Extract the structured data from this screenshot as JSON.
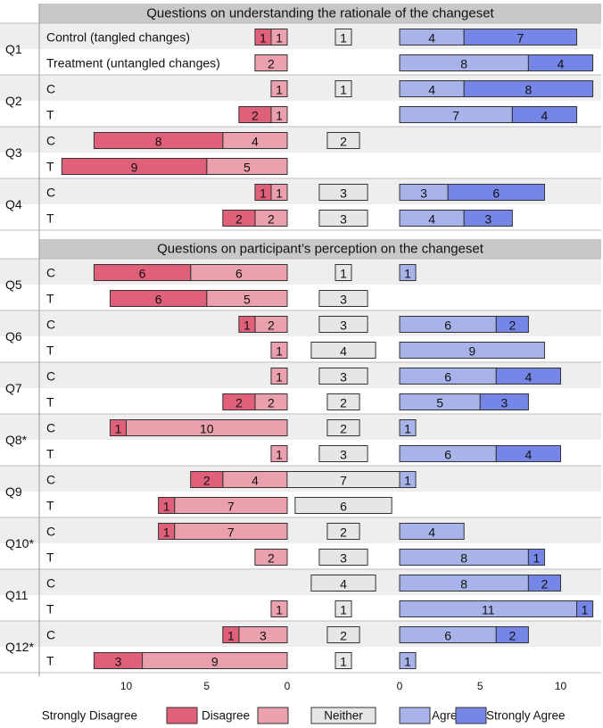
{
  "chart_data": {
    "type": "bar",
    "sections": [
      {
        "title": "Questions on understanding the rationale of the changeset",
        "questions": [
          {
            "label": "Q1",
            "rows": [
              {
                "group": "Control (tangled changes)",
                "strongly_disagree": 1,
                "disagree": 1,
                "neither": 1,
                "agree": 4,
                "strongly_agree": 7
              },
              {
                "group": "Treatment (untangled changes)",
                "strongly_disagree": 0,
                "disagree": 2,
                "neither": 0,
                "agree": 8,
                "strongly_agree": 4
              }
            ]
          },
          {
            "label": "Q2",
            "rows": [
              {
                "group": "C",
                "strongly_disagree": 0,
                "disagree": 1,
                "neither": 1,
                "agree": 4,
                "strongly_agree": 8
              },
              {
                "group": "T",
                "strongly_disagree": 2,
                "disagree": 1,
                "neither": 0,
                "agree": 7,
                "strongly_agree": 4
              }
            ]
          },
          {
            "label": "Q3",
            "rows": [
              {
                "group": "C",
                "strongly_disagree": 8,
                "disagree": 4,
                "neither": 2,
                "agree": 0,
                "strongly_agree": 0
              },
              {
                "group": "T",
                "strongly_disagree": 9,
                "disagree": 5,
                "neither": 0,
                "agree": 0,
                "strongly_agree": 0
              }
            ]
          },
          {
            "label": "Q4",
            "rows": [
              {
                "group": "C",
                "strongly_disagree": 1,
                "disagree": 1,
                "neither": 3,
                "agree": 3,
                "strongly_agree": 6
              },
              {
                "group": "T",
                "strongly_disagree": 2,
                "disagree": 2,
                "neither": 3,
                "agree": 4,
                "strongly_agree": 3
              }
            ]
          }
        ]
      },
      {
        "title": "Questions on participant’s perception on the changeset",
        "questions": [
          {
            "label": "Q5",
            "rows": [
              {
                "group": "C",
                "strongly_disagree": 6,
                "disagree": 6,
                "neither": 1,
                "agree": 1,
                "strongly_agree": 0
              },
              {
                "group": "T",
                "strongly_disagree": 6,
                "disagree": 5,
                "neither": 3,
                "agree": 0,
                "strongly_agree": 0
              }
            ]
          },
          {
            "label": "Q6",
            "rows": [
              {
                "group": "C",
                "strongly_disagree": 1,
                "disagree": 2,
                "neither": 3,
                "agree": 6,
                "strongly_agree": 2
              },
              {
                "group": "T",
                "strongly_disagree": 0,
                "disagree": 1,
                "neither": 4,
                "agree": 9,
                "strongly_agree": 0
              }
            ]
          },
          {
            "label": "Q7",
            "rows": [
              {
                "group": "C",
                "strongly_disagree": 0,
                "disagree": 1,
                "neither": 3,
                "agree": 6,
                "strongly_agree": 4
              },
              {
                "group": "T",
                "strongly_disagree": 2,
                "disagree": 2,
                "neither": 2,
                "agree": 5,
                "strongly_agree": 3
              }
            ]
          },
          {
            "label": "Q8*",
            "rows": [
              {
                "group": "C",
                "strongly_disagree": 1,
                "disagree": 10,
                "neither": 2,
                "agree": 1,
                "strongly_agree": 0
              },
              {
                "group": "T",
                "strongly_disagree": 0,
                "disagree": 1,
                "neither": 3,
                "agree": 6,
                "strongly_agree": 4
              }
            ]
          },
          {
            "label": "Q9",
            "rows": [
              {
                "group": "C",
                "strongly_disagree": 2,
                "disagree": 4,
                "neither": 7,
                "agree": 1,
                "strongly_agree": 0
              },
              {
                "group": "T",
                "strongly_disagree": 1,
                "disagree": 7,
                "neither": 6,
                "agree": 0,
                "strongly_agree": 0
              }
            ]
          },
          {
            "label": "Q10*",
            "rows": [
              {
                "group": "C",
                "strongly_disagree": 1,
                "disagree": 7,
                "neither": 2,
                "agree": 4,
                "strongly_agree": 0
              },
              {
                "group": "T",
                "strongly_disagree": 0,
                "disagree": 2,
                "neither": 3,
                "agree": 8,
                "strongly_agree": 1
              }
            ]
          },
          {
            "label": "Q11",
            "rows": [
              {
                "group": "C",
                "strongly_disagree": 0,
                "disagree": 0,
                "neither": 4,
                "agree": 8,
                "strongly_agree": 2
              },
              {
                "group": "T",
                "strongly_disagree": 0,
                "disagree": 1,
                "neither": 1,
                "agree": 11,
                "strongly_agree": 1
              }
            ]
          },
          {
            "label": "Q12*",
            "rows": [
              {
                "group": "C",
                "strongly_disagree": 1,
                "disagree": 3,
                "neither": 2,
                "agree": 6,
                "strongly_agree": 2
              },
              {
                "group": "T",
                "strongly_disagree": 3,
                "disagree": 9,
                "neither": 1,
                "agree": 1,
                "strongly_agree": 0
              }
            ]
          }
        ]
      }
    ],
    "axes": {
      "disagree_ticks": [
        10,
        5,
        0
      ],
      "agree_ticks": [
        0,
        5,
        10
      ],
      "disagree_range": [
        0,
        14
      ],
      "agree_range": [
        0,
        12
      ]
    },
    "legend": {
      "placement": "bottom",
      "entries": [
        {
          "key": "strongly_disagree",
          "label": "Strongly Disagree",
          "color": "#e0607a"
        },
        {
          "key": "disagree",
          "label": "Disagree",
          "color": "#eba0ae"
        },
        {
          "key": "neither",
          "label": "Neither",
          "color": "#e6e6e6"
        },
        {
          "key": "agree",
          "label": "Agree",
          "color": "#a8b3ea"
        },
        {
          "key": "strongly_agree",
          "label": "Strongly Agree",
          "color": "#7586e6"
        }
      ]
    },
    "colors": {
      "strongly_disagree": "#e0607a",
      "disagree": "#eba0ae",
      "neither": "#e6e6e6",
      "agree": "#a8b3ea",
      "strongly_agree": "#7586e6",
      "row_band": "#eeeeee",
      "section_header": "#c8c8c8",
      "border": "#333333"
    }
  }
}
